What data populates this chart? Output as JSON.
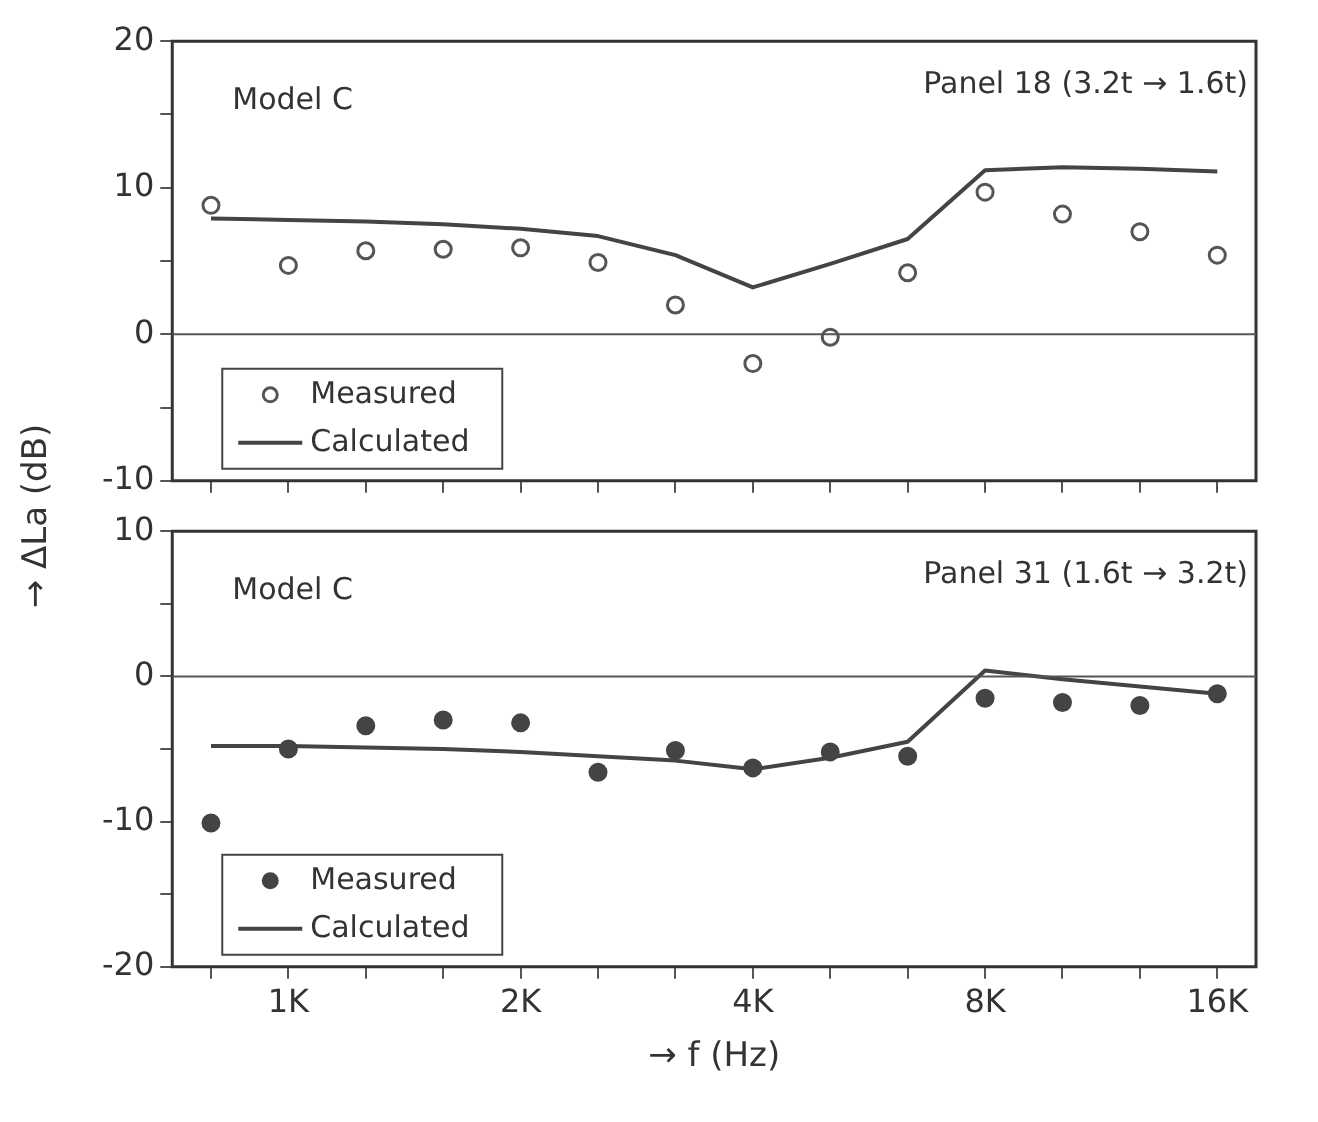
{
  "chart_data": [
    {
      "type": "line",
      "ylabel": "→ ΔLa (dB)",
      "annotations": [
        "Model C",
        "Panel 18 (3.2t → 1.6t)"
      ],
      "categories": [
        null,
        null,
        null,
        null,
        null,
        null,
        null,
        null,
        null,
        null,
        null,
        null,
        null,
        null
      ],
      "series": [
        {
          "name": "Measured",
          "type": "scatter",
          "marker": "circle",
          "color": "#555555",
          "values": [
            8.8,
            4.7,
            5.7,
            5.8,
            5.9,
            4.9,
            2.0,
            -2.0,
            -0.2,
            4.2,
            9.7,
            8.2,
            7.0,
            5.4
          ]
        },
        {
          "name": "Calculated",
          "type": "line",
          "color": "#444444",
          "values": [
            7.9,
            7.8,
            7.7,
            7.5,
            7.2,
            6.7,
            5.4,
            3.2,
            4.8,
            6.5,
            11.2,
            11.4,
            11.3,
            11.1
          ]
        }
      ],
      "ylim": [
        -10,
        20
      ],
      "yticks": [
        -10,
        {
          "value": -5,
          "label": null
        },
        0,
        {
          "value": 5,
          "label": null
        },
        10,
        {
          "value": 15,
          "label": null
        },
        20
      ],
      "ref_lines": [
        {
          "axis": "y",
          "value": 0
        }
      ],
      "legend": "bottom left",
      "tick_labels": "y"
    },
    {
      "type": "line",
      "xlabel": "→ f (Hz)",
      "annotations": [
        "Model C",
        "Panel 31 (1.6t → 3.2t)"
      ],
      "categories": [
        null,
        "1K",
        null,
        null,
        "2K",
        null,
        null,
        "4K",
        null,
        null,
        "8K",
        null,
        null,
        "16K"
      ],
      "series": [
        {
          "name": "Measured",
          "type": "scatter",
          "marker": "circle",
          "color": "#444444",
          "values": [
            -10.1,
            -5.0,
            -3.4,
            -3.0,
            -3.2,
            -6.6,
            -5.1,
            -6.3,
            -5.2,
            -5.5,
            -1.5,
            -1.8,
            -2.0,
            -1.2
          ]
        },
        {
          "name": "Calculated",
          "type": "line",
          "color": "#444444",
          "values": [
            -4.8,
            -4.8,
            -4.9,
            -5.0,
            -5.2,
            -5.5,
            -5.8,
            -6.4,
            -5.6,
            -4.5,
            0.4,
            -0.2,
            -0.7,
            -1.2
          ]
        }
      ],
      "ylim": [
        -20,
        10
      ],
      "yticks": [
        -20,
        {
          "value": -15,
          "label": null
        },
        -10,
        {
          "value": -5,
          "label": null
        },
        0,
        {
          "value": 5,
          "label": null
        },
        10
      ],
      "ref_lines": [
        {
          "axis": "y",
          "value": 0
        }
      ],
      "legend": "bottom left"
    }
  ]
}
